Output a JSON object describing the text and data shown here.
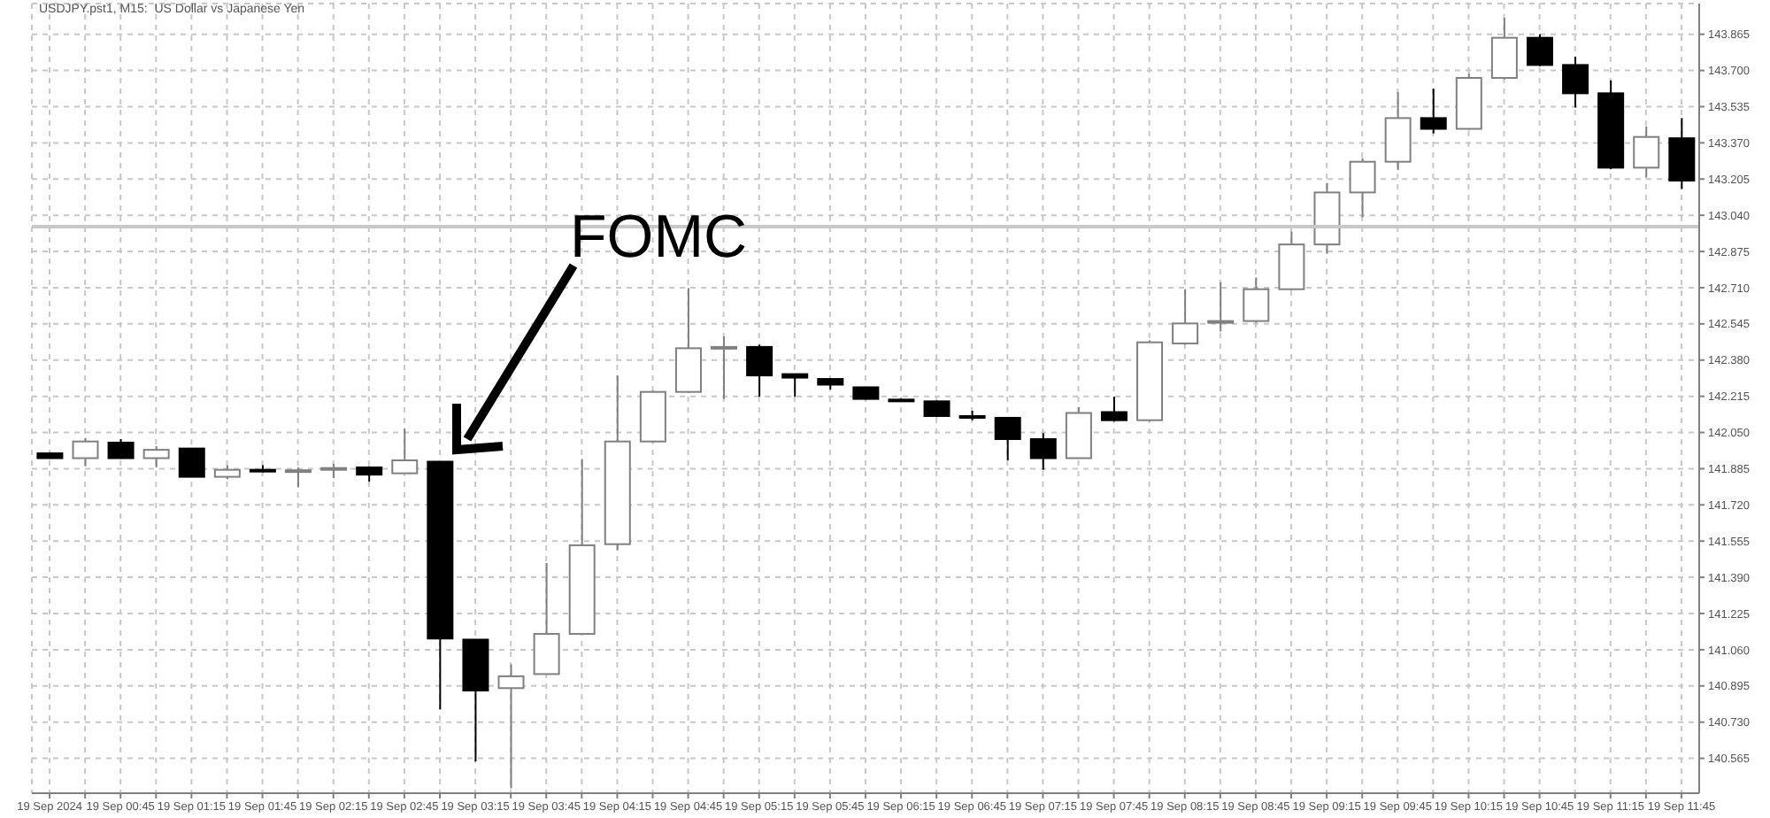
{
  "chart_data": {
    "type": "candlestick",
    "title": "USDJPY.pst1, M15:  US Dollar vs Japanese Yen",
    "categories": [
      "19 Sep 2024",
      null,
      "19 Sep 00:45",
      null,
      "19 Sep 01:15",
      null,
      "19 Sep 01:45",
      null,
      "19 Sep 02:15",
      null,
      "19 Sep 02:45",
      null,
      "19 Sep 03:15",
      null,
      "19 Sep 03:45",
      null,
      "19 Sep 04:15",
      null,
      "19 Sep 04:45",
      null,
      "19 Sep 05:15",
      null,
      "19 Sep 05:45",
      null,
      "19 Sep 06:15",
      null,
      "19 Sep 06:45",
      null,
      "19 Sep 07:15",
      null,
      "19 Sep 07:45",
      null,
      "19 Sep 08:15",
      null,
      "19 Sep 08:45",
      null,
      "19 Sep 09:15",
      null,
      "19 Sep 09:45",
      null,
      "19 Sep 10:15",
      null,
      "19 Sep 10:45",
      null,
      "19 Sep 11:15",
      null,
      "19 Sep 11:45"
    ],
    "ohlc": [
      [
        141.955,
        141.96,
        141.93,
        141.933
      ],
      [
        141.933,
        142.025,
        141.896,
        142.009
      ],
      [
        142.004,
        142.02,
        141.93,
        141.933
      ],
      [
        141.933,
        141.988,
        141.891,
        141.971
      ],
      [
        141.977,
        141.977,
        141.848,
        141.848
      ],
      [
        141.848,
        141.901,
        141.837,
        141.88
      ],
      [
        141.88,
        141.901,
        141.869,
        141.875
      ],
      [
        141.875,
        141.891,
        141.8,
        141.878
      ],
      [
        141.885,
        141.907,
        141.842,
        141.888
      ],
      [
        141.891,
        141.896,
        141.826,
        141.858
      ],
      [
        141.864,
        142.068,
        141.864,
        141.923
      ],
      [
        141.917,
        141.917,
        140.788,
        141.111
      ],
      [
        141.106,
        141.106,
        140.551,
        140.874
      ],
      [
        140.885,
        140.993,
        140.428,
        140.939
      ],
      [
        140.949,
        141.455,
        140.949,
        141.132
      ],
      [
        141.132,
        141.929,
        141.132,
        141.536
      ],
      [
        141.541,
        142.31,
        141.514,
        142.009
      ],
      [
        142.009,
        142.24,
        142.005,
        142.235
      ],
      [
        142.235,
        142.708,
        142.23,
        142.434
      ],
      [
        142.434,
        142.488,
        142.203,
        142.44
      ],
      [
        142.44,
        142.45,
        142.213,
        142.31
      ],
      [
        142.316,
        142.318,
        142.213,
        142.3
      ],
      [
        142.294,
        142.294,
        142.246,
        142.268
      ],
      [
        142.256,
        142.256,
        142.2,
        142.203
      ],
      [
        142.2,
        142.205,
        142.19,
        142.195
      ],
      [
        142.192,
        142.195,
        142.12,
        142.125
      ],
      [
        142.125,
        142.149,
        142.106,
        142.122
      ],
      [
        142.117,
        142.117,
        141.923,
        142.02
      ],
      [
        142.02,
        142.047,
        141.88,
        141.933
      ],
      [
        141.933,
        142.165,
        141.933,
        142.139
      ],
      [
        142.143,
        142.213,
        142.1,
        142.106
      ],
      [
        142.106,
        142.47,
        142.1,
        142.461
      ],
      [
        142.456,
        142.703,
        142.45,
        142.547
      ],
      [
        142.55,
        142.735,
        142.51,
        142.558
      ],
      [
        142.558,
        142.756,
        142.55,
        142.703
      ],
      [
        142.703,
        142.966,
        142.7,
        142.907
      ],
      [
        142.907,
        143.187,
        142.865,
        143.144
      ],
      [
        143.144,
        143.3,
        143.031,
        143.284
      ],
      [
        143.284,
        143.601,
        143.246,
        143.483
      ],
      [
        143.483,
        143.617,
        143.413,
        143.434
      ],
      [
        143.434,
        143.688,
        143.43,
        143.666
      ],
      [
        143.666,
        143.94,
        143.66,
        143.849
      ],
      [
        143.849,
        143.865,
        143.72,
        143.725
      ],
      [
        143.725,
        143.763,
        143.531,
        143.596
      ],
      [
        143.596,
        143.655,
        143.25,
        143.257
      ],
      [
        143.257,
        143.445,
        143.214,
        143.397
      ],
      [
        143.391,
        143.483,
        143.16,
        143.198
      ]
    ],
    "colors": [
      "#000000",
      "#ffffff",
      "#000000",
      "#ffffff",
      "#000000",
      "#ffffff",
      "#000000",
      "#ffffff",
      "#ffffff",
      "#000000",
      "#ffffff",
      "#000000",
      "#000000",
      "#ffffff",
      "#ffffff",
      "#ffffff",
      "#ffffff",
      "#ffffff",
      "#ffffff",
      "#ffffff",
      "#000000",
      "#000000",
      "#000000",
      "#000000",
      "#000000",
      "#000000",
      "#000000",
      "#000000",
      "#000000",
      "#ffffff",
      "#000000",
      "#ffffff",
      "#ffffff",
      "#ffffff",
      "#ffffff",
      "#ffffff",
      "#ffffff",
      "#ffffff",
      "#ffffff",
      "#000000",
      "#ffffff",
      "#ffffff",
      "#000000",
      "#000000",
      "#000000",
      "#ffffff",
      "#000000"
    ],
    "ylim": [
      140.406,
      144.005
    ],
    "yticks": [
      140.565,
      {
        "value": 140.73,
        "label": "140.730"
      },
      140.895,
      {
        "value": 141.06,
        "label": "141.060"
      },
      141.225,
      {
        "value": 141.39,
        "label": "141.390"
      },
      141.555,
      {
        "value": 141.72,
        "label": "141.720"
      },
      141.885,
      {
        "value": 142.05,
        "label": "142.050"
      },
      142.215,
      {
        "value": 142.38,
        "label": "142.380"
      },
      142.545,
      {
        "value": 142.71,
        "label": "142.710"
      },
      142.875,
      {
        "value": 143.04,
        "label": "143.040"
      },
      143.205,
      {
        "value": 143.37,
        "label": "143.370"
      },
      143.535,
      {
        "value": 143.7,
        "label": "143.700"
      },
      143.865
    ],
    "grid": true,
    "ref_lines": [
      {
        "axis": "y",
        "value": 142.988,
        "color": "#c8c8c8"
      }
    ],
    "annotations": [
      "FOMC"
    ]
  }
}
